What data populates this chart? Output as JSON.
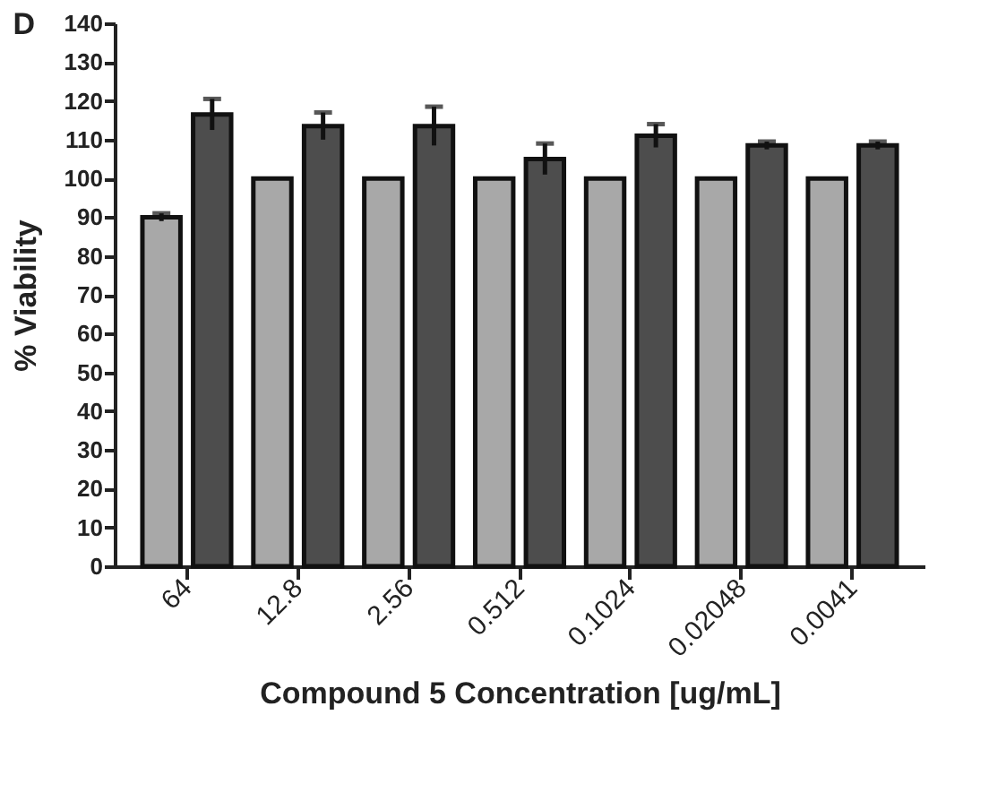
{
  "chart_data": {
    "type": "bar",
    "xlabel": "Compound 5 Concentration [ug/mL]",
    "ylabel": "% Viability",
    "annotations": [
      "D"
    ],
    "categories": [
      "64",
      "12.8",
      "2.56",
      "0.512",
      "0.1024",
      "0.02048",
      "0.0041"
    ],
    "series": [
      {
        "color": "#a8a8a8",
        "values": [
          90,
          100,
          100,
          100,
          100,
          100,
          100
        ],
        "errors": [
          1,
          null,
          null,
          null,
          null,
          null,
          null
        ]
      },
      {
        "color": "#4d4d4d",
        "values": [
          116.5,
          113.5,
          113.5,
          105,
          111,
          108.5,
          108.5
        ],
        "errors": [
          4,
          3.5,
          5,
          4,
          3,
          1,
          1
        ]
      }
    ],
    "ylim": [
      0,
      140
    ],
    "yticks": [
      0,
      10,
      20,
      30,
      40,
      50,
      60,
      70,
      80,
      90,
      100,
      110,
      120,
      130,
      140
    ],
    "grid": false,
    "legend": false
  }
}
